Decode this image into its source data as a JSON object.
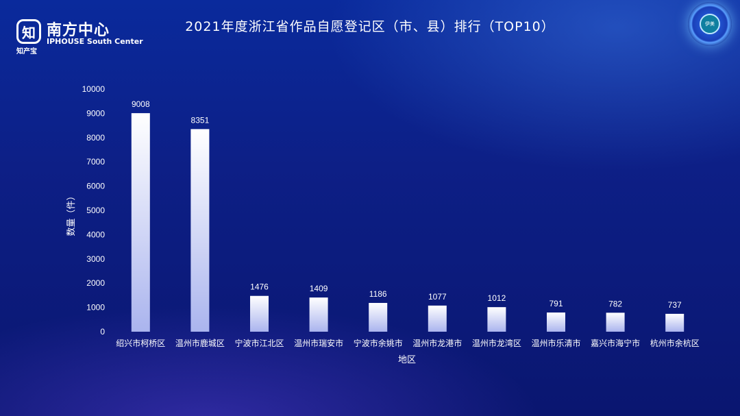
{
  "header": {
    "logo_mark": "知",
    "logo_sub": "知产宝",
    "logo_title": "南方中心",
    "logo_en": "IPHOUSE South Center",
    "title": "2021年度浙江省作品自愿登记区（市、县）排行（TOP10）",
    "badge_text": "伊美"
  },
  "colors": {
    "bar_top": "#ffffff",
    "bar_bottom": "#aab4ee",
    "background": "#0d1f86"
  },
  "chart_data": {
    "type": "bar",
    "title": "2021年度浙江省作品自愿登记区（市、县）排行（TOP10）",
    "xlabel": "地区",
    "ylabel": "数量（件）",
    "ylim": [
      0,
      10000
    ],
    "yticks": [
      0,
      1000,
      2000,
      3000,
      4000,
      5000,
      6000,
      7000,
      8000,
      9000,
      10000
    ],
    "grid": false,
    "categories": [
      "绍兴市柯桥区",
      "温州市鹿城区",
      "宁波市江北区",
      "温州市瑞安市",
      "宁波市余姚市",
      "温州市龙港市",
      "温州市龙湾区",
      "温州市乐清市",
      "嘉兴市海宁市",
      "杭州市余杭区"
    ],
    "values": [
      9008,
      8351,
      1476,
      1409,
      1186,
      1077,
      1012,
      791,
      782,
      737
    ]
  }
}
